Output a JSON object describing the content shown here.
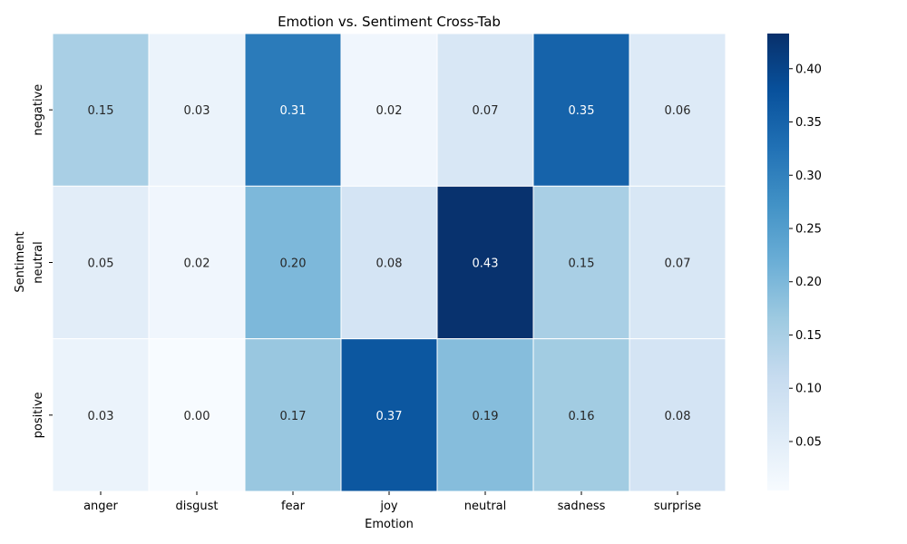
{
  "chart_data": {
    "type": "heatmap",
    "title": "Emotion vs. Sentiment Cross-Tab",
    "xlabel": "Emotion",
    "ylabel": "Sentiment",
    "x_categories": [
      "anger",
      "disgust",
      "fear",
      "joy",
      "neutral",
      "sadness",
      "surprise"
    ],
    "y_categories": [
      "negative",
      "neutral",
      "positive"
    ],
    "values": [
      [
        0.15,
        0.03,
        0.31,
        0.02,
        0.07,
        0.35,
        0.06
      ],
      [
        0.05,
        0.02,
        0.2,
        0.08,
        0.43,
        0.15,
        0.07
      ],
      [
        0.03,
        0.0,
        0.17,
        0.37,
        0.19,
        0.16,
        0.08
      ]
    ],
    "value_format": "2 decimals",
    "colorbar": {
      "colormap": "Blues",
      "range": [
        0.004,
        0.433
      ],
      "ticks": [
        "0.05",
        "0.10",
        "0.15",
        "0.20",
        "0.25",
        "0.30",
        "0.35",
        "0.40"
      ],
      "tick_values": [
        0.05,
        0.1,
        0.15,
        0.2,
        0.25,
        0.3,
        0.35,
        0.4
      ]
    }
  }
}
